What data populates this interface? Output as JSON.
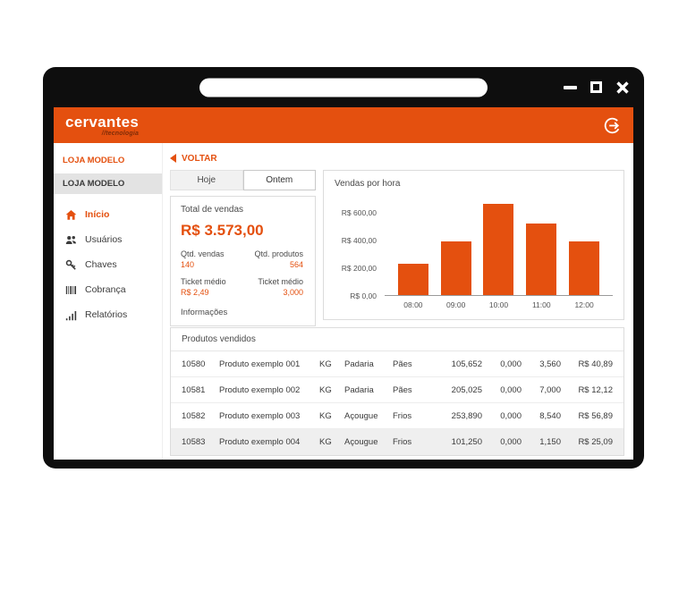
{
  "colors": {
    "accent": "#e4500f",
    "bar": "#e4500f",
    "frame": "#0e0e0e"
  },
  "header": {
    "logo_primary": "cervantes",
    "logo_secondary": "//tecnologia"
  },
  "sidebar": {
    "store_label": "LOJA MODELO",
    "selected_store": "LOJA MODELO",
    "items": [
      {
        "name": "inicio",
        "label": "Início",
        "icon": "home-icon",
        "active": true
      },
      {
        "name": "usuarios",
        "label": "Usuários",
        "icon": "users-icon",
        "active": false
      },
      {
        "name": "chaves",
        "label": "Chaves",
        "icon": "key-icon",
        "active": false
      },
      {
        "name": "cobranca",
        "label": "Cobrança",
        "icon": "barcode-icon",
        "active": false
      },
      {
        "name": "relatorios",
        "label": "Relatórios",
        "icon": "chart-icon",
        "active": false
      }
    ]
  },
  "toolbar": {
    "back_label": "VOLTAR"
  },
  "tabs": [
    {
      "label": "Hoje",
      "active": false
    },
    {
      "label": "Ontem",
      "active": true
    }
  ],
  "stats": {
    "title": "Total de vendas",
    "total": "R$ 3.573,00",
    "metrics": [
      {
        "label": "Qtd. vendas",
        "value": "140"
      },
      {
        "label": "Qtd. produtos",
        "value": "564"
      },
      {
        "label": "Ticket médio",
        "value": "R$ 2,49"
      },
      {
        "label": "Ticket médio",
        "value": "3,000"
      }
    ],
    "footer_label": "Informações"
  },
  "chart_data": {
    "type": "bar",
    "title": "Vendas por hora",
    "categories": [
      "08:00",
      "09:00",
      "10:00",
      "11:00",
      "12:00"
    ],
    "values": [
      230,
      390,
      660,
      520,
      390
    ],
    "y_ticks": [
      {
        "label": "R$ 600,00",
        "value": 600
      },
      {
        "label": "R$ 400,00",
        "value": 400
      },
      {
        "label": "R$ 200,00",
        "value": 200
      },
      {
        "label": "R$ 0,00",
        "value": 0
      }
    ],
    "ylim": [
      0,
      700
    ],
    "xlabel": "",
    "ylabel": "",
    "grid": false,
    "legend": false,
    "bar_color": "#e4500f"
  },
  "table": {
    "title": "Produtos vendidos",
    "rows": [
      [
        "10580",
        "Produto exemplo 001",
        "KG",
        "Padaria",
        "Pães",
        "105,652",
        "0,000",
        "3,560",
        "R$ 40,89"
      ],
      [
        "10581",
        "Produto exemplo 002",
        "KG",
        "Padaria",
        "Pães",
        "205,025",
        "0,000",
        "7,000",
        "R$ 12,12"
      ],
      [
        "10582",
        "Produto exemplo 003",
        "KG",
        "Açougue",
        "Frios",
        "253,890",
        "0,000",
        "8,540",
        "R$ 56,89"
      ],
      [
        "10583",
        "Produto exemplo 004",
        "KG",
        "Açougue",
        "Frios",
        "101,250",
        "0,000",
        "1,150",
        "R$ 25,09"
      ]
    ]
  }
}
